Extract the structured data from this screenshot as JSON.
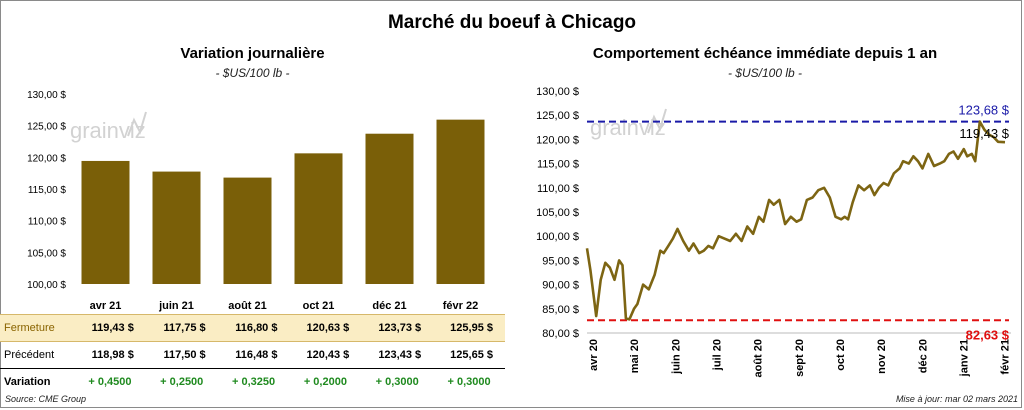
{
  "title": "Marché du boeuf à Chicago",
  "colors": {
    "bar": "#7a5f08",
    "line": "#7d6513",
    "max_line": "#1a1aa8",
    "min_line": "#e01010",
    "close_row_bg": "#faedc4",
    "variation_text": "#1f8a1f"
  },
  "watermark": "grainviz",
  "left_chart": {
    "title": "Variation journalière",
    "subtitle": "- $US/100 lb -",
    "chart_data": {
      "type": "bar",
      "categories": [
        "avr 21",
        "juin 21",
        "août 21",
        "oct 21",
        "déc 21",
        "févr 22"
      ],
      "values": [
        119.43,
        117.75,
        116.8,
        120.63,
        123.73,
        125.95
      ],
      "ylim": [
        100,
        130
      ],
      "yticks": [
        "100,00 $",
        "105,00 $",
        "110,00 $",
        "115,00 $",
        "120,00 $",
        "125,00 $",
        "130,00 $"
      ],
      "xlabel": "",
      "ylabel": "",
      "grid": false
    }
  },
  "table": {
    "rows": [
      {
        "label": "Fermeture",
        "values": [
          "119,43  $",
          "117,75  $",
          "116,80  $",
          "120,63  $",
          "123,73  $",
          "125,95  $"
        ]
      },
      {
        "label": "Précédent",
        "values": [
          "118,98  $",
          "117,50  $",
          "116,48  $",
          "120,43  $",
          "123,43  $",
          "125,65  $"
        ]
      },
      {
        "label": "Variation",
        "values": [
          "+ 0,4500",
          "+ 0,2500",
          "+ 0,3250",
          "+ 0,2000",
          "+ 0,3000",
          "+ 0,3000"
        ]
      }
    ]
  },
  "right_chart": {
    "title": "Comportement  échéance immédiate depuis 1 an",
    "subtitle": "- $US/100 lb -",
    "chart_data": {
      "type": "line",
      "ylim": [
        80,
        130
      ],
      "yticks": [
        "80,00 $",
        "85,00 $",
        "90,00 $",
        "95,00 $",
        "100,00 $",
        "105,00 $",
        "110,00 $",
        "115,00 $",
        "120,00 $",
        "125,00 $",
        "130,00 $"
      ],
      "x_ticks": [
        "avr 20",
        "mai 20",
        "juin 20",
        "juil 20",
        "août 20",
        "sept 20",
        "oct 20",
        "nov 20",
        "déc 20",
        "janv 21",
        "févr 21"
      ],
      "series": [
        {
          "x": [
            "2020-03-02",
            "2020-03-05",
            "2020-03-10",
            "2020-03-14",
            "2020-03-18",
            "2020-03-22",
            "2020-03-26",
            "2020-03-30",
            "2020-04-02",
            "2020-04-05",
            "2020-04-08",
            "2020-04-12",
            "2020-04-15",
            "2020-04-20",
            "2020-04-25",
            "2020-04-30",
            "2020-05-05",
            "2020-05-08",
            "2020-05-12",
            "2020-05-16",
            "2020-05-20",
            "2020-05-25",
            "2020-05-30",
            "2020-06-03",
            "2020-06-08",
            "2020-06-12",
            "2020-06-16",
            "2020-06-20",
            "2020-06-25",
            "2020-06-30",
            "2020-07-05",
            "2020-07-10",
            "2020-07-15",
            "2020-07-20",
            "2020-07-25",
            "2020-07-30",
            "2020-08-03",
            "2020-08-08",
            "2020-08-12",
            "2020-08-17",
            "2020-08-22",
            "2020-08-27",
            "2020-09-01",
            "2020-09-05",
            "2020-09-10",
            "2020-09-15",
            "2020-09-20",
            "2020-09-25",
            "2020-09-30",
            "2020-10-05",
            "2020-10-10",
            "2020-10-13",
            "2020-10-16",
            "2020-10-20",
            "2020-10-25",
            "2020-10-30",
            "2020-11-04",
            "2020-11-08",
            "2020-11-12",
            "2020-11-16",
            "2020-11-20",
            "2020-11-25",
            "2020-11-30",
            "2020-12-03",
            "2020-12-08",
            "2020-12-12",
            "2020-12-16",
            "2020-12-20",
            "2020-12-25",
            "2020-12-30",
            "2021-01-04",
            "2021-01-08",
            "2021-01-12",
            "2021-01-16",
            "2021-01-20",
            "2021-01-25",
            "2021-01-28",
            "2021-02-01",
            "2021-02-04",
            "2021-02-08",
            "2021-02-12",
            "2021-02-16",
            "2021-02-20",
            "2021-02-24",
            "2021-03-02"
          ],
          "values": [
            97.5,
            93,
            83.5,
            91,
            94.5,
            93.5,
            91,
            95,
            94,
            83,
            82.8,
            85,
            86,
            90,
            89,
            92,
            97,
            96.5,
            98,
            99.5,
            101.5,
            99,
            97,
            98.5,
            96.5,
            97,
            98,
            97.5,
            100,
            99.5,
            99,
            100.5,
            99,
            102,
            100.5,
            104,
            103,
            107.5,
            106.5,
            107.5,
            102.5,
            104,
            103,
            103.5,
            107.5,
            108,
            109.5,
            110,
            108,
            104,
            103.5,
            104,
            103.5,
            107,
            110.5,
            109.5,
            110.5,
            108.5,
            110,
            111,
            110.5,
            113,
            114,
            115.5,
            115,
            116.5,
            115.5,
            114,
            117,
            114.5,
            115,
            115.5,
            117,
            117.5,
            116,
            118,
            116.5,
            117,
            115.5,
            123.68,
            122,
            121,
            120.5,
            119.5,
            119.43
          ]
        }
      ],
      "annotations": [
        {
          "label": "123,68 $",
          "value": 123.68,
          "color": "#1a1aa8"
        },
        {
          "label": "82,63 $",
          "value": 82.63,
          "color": "#e01010"
        },
        {
          "label": "119,43 $",
          "value": 119.43,
          "color": "#000000"
        }
      ]
    }
  },
  "footer": {
    "source": "Source: CME Group",
    "updated": "Mise à jour: mar 02 mars 2021"
  }
}
